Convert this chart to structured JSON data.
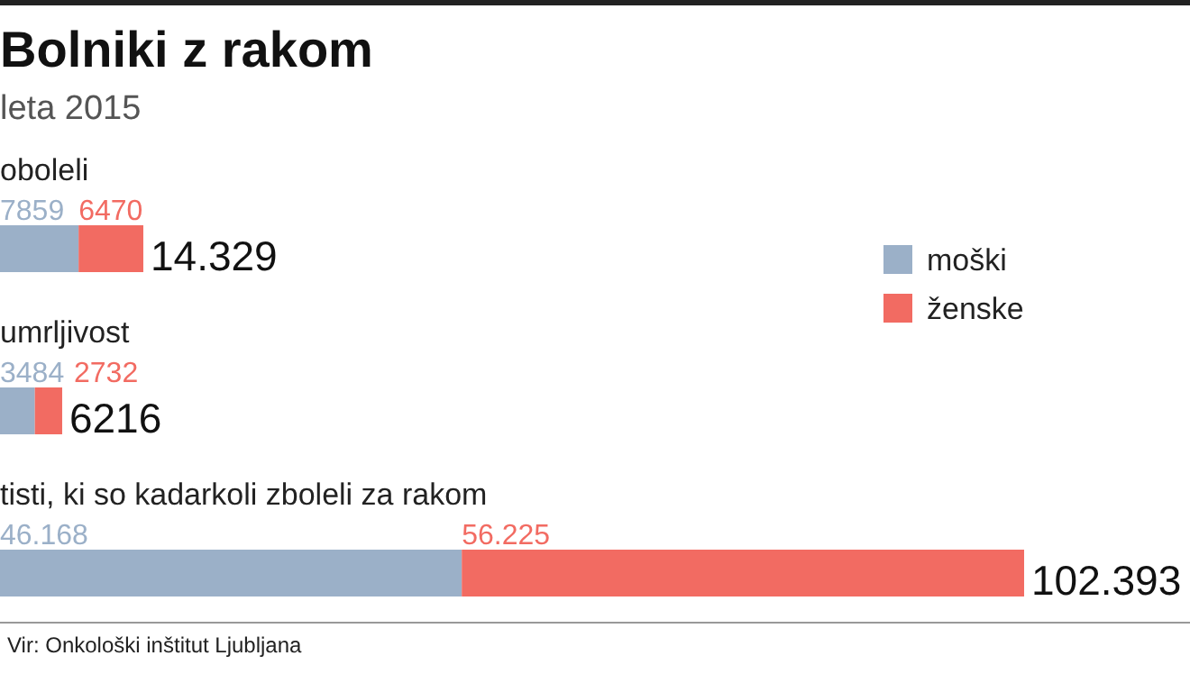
{
  "chart_data": {
    "type": "bar",
    "orientation": "horizontal",
    "stacked": true,
    "title": "Bolniki z rakom",
    "subtitle": "leta 2015",
    "categories": [
      "oboleli",
      "umrljivost",
      "tisti, ki so kadarkoli zboleli za rakom"
    ],
    "series": [
      {
        "name": "moški",
        "color": "#9bb0c8",
        "values": [
          7859,
          3484,
          46168
        ],
        "value_labels": [
          "7859",
          "3484",
          "46.168"
        ]
      },
      {
        "name": "ženske",
        "color": "#f26b62",
        "values": [
          6470,
          2732,
          56225
        ],
        "value_labels": [
          "6470",
          "2732",
          "56.225"
        ]
      }
    ],
    "totals": [
      "14.329",
      "6216",
      "102.393"
    ],
    "legend": "right",
    "annotations": [
      "Vir: Onkološki inštitut Ljubljana"
    ]
  }
}
